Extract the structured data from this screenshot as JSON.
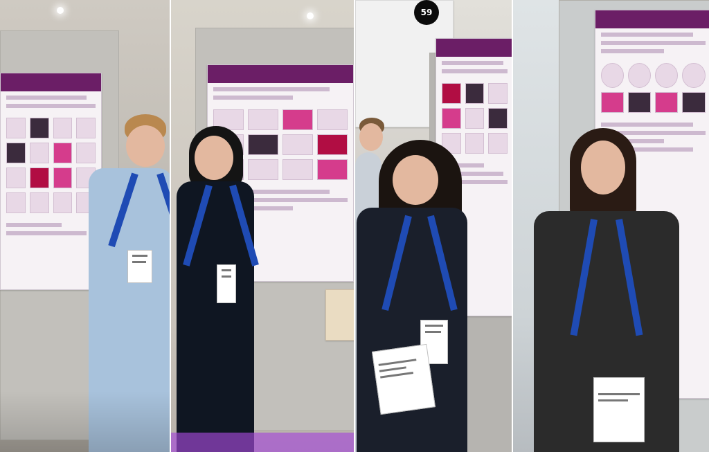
{
  "collage": {
    "panels": [
      {
        "id": "panel-1",
        "posters": [
          {
            "id": "poster-1"
          }
        ]
      },
      {
        "id": "panel-2",
        "posters": [
          {
            "id": "poster-2"
          }
        ]
      },
      {
        "id": "panel-3",
        "posters": [
          {
            "id": "poster-3"
          }
        ],
        "sign_number": "59"
      },
      {
        "id": "panel-4",
        "posters": [
          {
            "id": "poster-4"
          }
        ]
      }
    ]
  },
  "colors": {
    "poster_header_purple": "#6b1e66",
    "lanyard_blue": "#1f4bb4",
    "highlight_pink": "#d53c8c",
    "highlight_red": "#b10d43",
    "carpet_purple": "#a54ad8"
  }
}
